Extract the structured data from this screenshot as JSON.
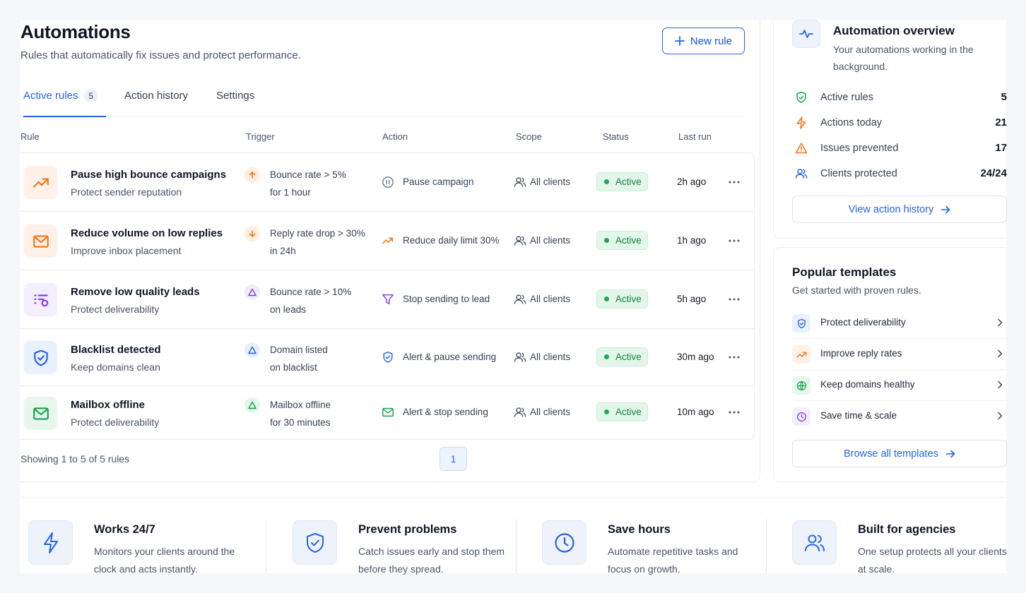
{
  "header": {
    "title": "Automations",
    "subtitle": "Rules that automatically fix issues and protect performance.",
    "new_rule_label": "New rule"
  },
  "tabs": [
    {
      "label": "Active rules",
      "badge": "5",
      "active": true
    },
    {
      "label": "Action history"
    },
    {
      "label": "Settings"
    }
  ],
  "table": {
    "columns": [
      "Rule",
      "Trigger",
      "Action",
      "Scope",
      "Status",
      "Last run"
    ],
    "rows": [
      {
        "name": "Pause high bounce campaigns",
        "desc": "Protect sender reputation",
        "icon": "trending-up-icon",
        "trigger_icon": "arrow-up-icon",
        "trigger_line1": "Bounce rate > 5%",
        "trigger_line2": "for 1 hour",
        "action_icon": "pause-circle-icon",
        "action": "Pause campaign",
        "scope": "All clients",
        "status": "Active",
        "last_run": "2h ago"
      },
      {
        "name": "Reduce volume on low replies",
        "desc": "Improve inbox placement",
        "icon": "mail-icon",
        "trigger_icon": "arrow-down-icon",
        "trigger_line1": "Reply rate drop > 30%",
        "trigger_line2": "in 24h",
        "action_icon": "trending-up-icon",
        "action": "Reduce daily limit 30%",
        "scope": "All clients",
        "status": "Active",
        "last_run": "1h ago"
      },
      {
        "name": "Remove low quality leads",
        "desc": "Protect deliverability",
        "icon": "list-filter-icon",
        "trigger_icon": "warning-triangle-icon",
        "trigger_line1": "Bounce rate > 10%",
        "trigger_line2": "on leads",
        "action_icon": "funnel-icon",
        "action": "Stop sending to lead",
        "scope": "All clients",
        "status": "Active",
        "last_run": "5h ago"
      },
      {
        "name": "Blacklist detected",
        "desc": "Keep domains clean",
        "icon": "shield-check-icon",
        "trigger_icon": "warning-triangle-icon",
        "trigger_line1": "Domain listed",
        "trigger_line2": "on blacklist",
        "action_icon": "shield-check-icon",
        "action": "Alert & pause sending",
        "scope": "All clients",
        "status": "Active",
        "last_run": "30m ago"
      },
      {
        "name": "Mailbox offline",
        "desc": "Protect deliverability",
        "icon": "mail-icon",
        "trigger_icon": "warning-triangle-icon",
        "trigger_line1": "Mailbox offline",
        "trigger_line2": "for 30 minutes",
        "action_icon": "mail-icon",
        "action": "Alert & stop sending",
        "scope": "All clients",
        "status": "Active",
        "last_run": "10m ago"
      }
    ],
    "showing": "Showing 1 to 5 of 5 rules",
    "page": "1"
  },
  "overview": {
    "title": "Automation overview",
    "subtitle": "Your automations working in the background.",
    "stats": [
      {
        "label": "Active rules",
        "value": "5",
        "icon": "shield-check-icon"
      },
      {
        "label": "Actions today",
        "value": "21",
        "icon": "lightning-icon"
      },
      {
        "label": "Issues prevented",
        "value": "17",
        "icon": "warning-triangle-icon"
      },
      {
        "label": "Clients protected",
        "value": "24/24",
        "icon": "users-icon"
      }
    ],
    "link_label": "View action history"
  },
  "templates": {
    "title": "Popular templates",
    "subtitle": "Get started with proven rules.",
    "items": [
      {
        "label": "Protect deliverability",
        "icon": "shield-check-icon"
      },
      {
        "label": "Improve reply rates",
        "icon": "trending-up-icon"
      },
      {
        "label": "Keep domains healthy",
        "icon": "globe-icon"
      },
      {
        "label": "Save time & scale",
        "icon": "clock-icon"
      }
    ],
    "browse_label": "Browse all templates"
  },
  "features": [
    {
      "title": "Works 24/7",
      "desc": "Monitors your clients around the clock and acts instantly.",
      "icon": "lightning-icon"
    },
    {
      "title": "Prevent problems",
      "desc": "Catch issues early and stop them before they spread.",
      "icon": "shield-check-icon"
    },
    {
      "title": "Save hours",
      "desc": "Automate repetitive tasks and focus on growth.",
      "icon": "clock-icon"
    },
    {
      "title": "Built for agencies",
      "desc": "One setup protects all your clients at scale.",
      "icon": "users-icon"
    }
  ],
  "colors": {
    "accent": "#2563eb",
    "success": "#16a34a",
    "warning": "#f97316",
    "purple": "#7c3aed"
  }
}
